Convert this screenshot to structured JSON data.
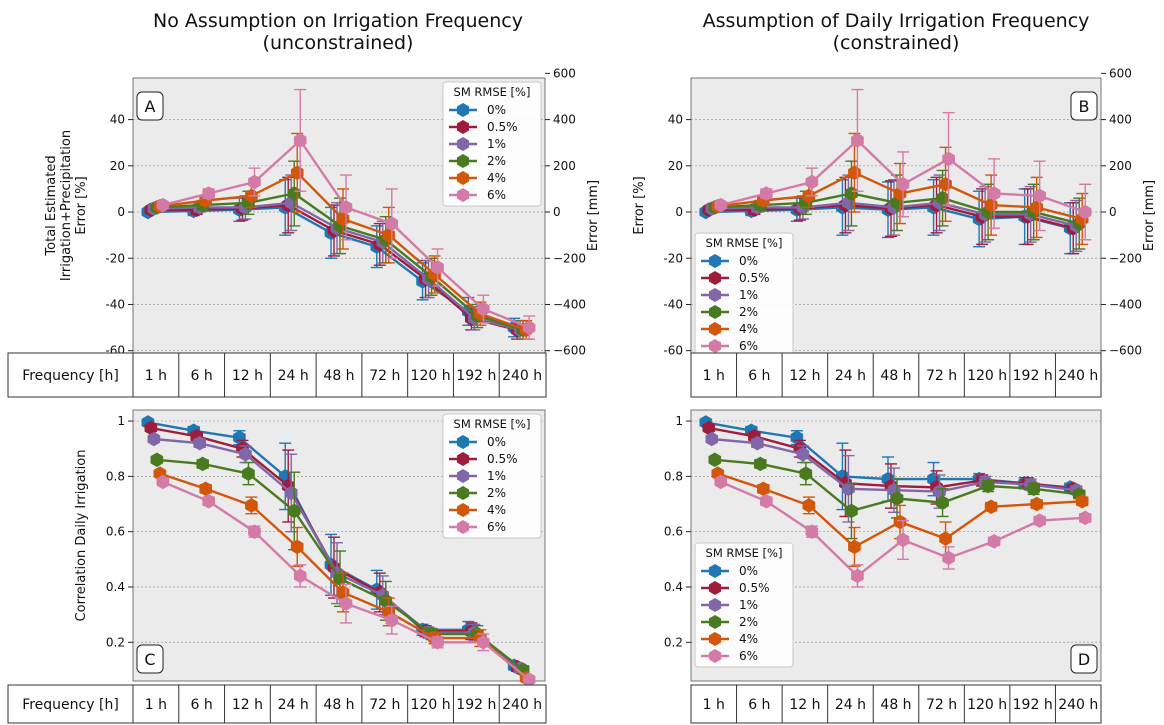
{
  "titles": {
    "left": [
      "No Assumption on Irrigation Frequency",
      "(unconstrained)"
    ],
    "right": [
      "Assumption of Daily Irrigation Frequency",
      "(constrained)"
    ]
  },
  "frequency_label": "Frequency [h]",
  "colors": {
    "0%": "#1f77b4",
    "0.5%": "#a01c3c",
    "1%": "#8067a8",
    "2%": "#4a7a1f",
    "4%": "#d2570a",
    "6%": "#d47aa7"
  },
  "chart_data": [
    {
      "id": "A",
      "type": "line",
      "panel_label": "A",
      "ylabel": [
        "Total Estimated",
        "Irrigation+Precipitation",
        "Error [%]"
      ],
      "y2label": "Error [mm]",
      "ylim": [
        -61,
        58
      ],
      "yticks": [
        -60,
        -40,
        -20,
        0,
        20,
        40
      ],
      "y2ticks": [
        -600,
        -400,
        -200,
        0,
        200,
        400,
        600
      ],
      "y2_per_y": 10,
      "grid": true,
      "legend_title": "SM RMSE [%]",
      "legend_position": "top-right",
      "categories": [
        "1 h",
        "6 h",
        "12 h",
        "24 h",
        "48 h",
        "72 h",
        "120 h",
        "192 h",
        "240 h"
      ],
      "series": [
        {
          "name": "0%",
          "values": [
            0,
            0.5,
            1,
            2,
            -9,
            -15,
            -30,
            -43,
            -50
          ],
          "err": [
            1,
            2,
            5,
            12,
            11,
            9,
            8,
            6,
            4
          ]
        },
        {
          "name": "0.5%",
          "values": [
            1,
            1,
            1.5,
            3,
            -8,
            -14,
            -29,
            -46,
            -51
          ],
          "err": [
            1,
            2,
            5,
            12,
            11,
            9,
            8,
            5,
            4
          ]
        },
        {
          "name": "1%",
          "values": [
            1.5,
            2,
            2,
            4,
            -7,
            -13,
            -29,
            -46,
            -51
          ],
          "err": [
            1,
            2,
            5,
            12,
            11,
            9,
            8,
            5,
            4
          ]
        },
        {
          "name": "2%",
          "values": [
            2,
            3,
            4,
            8,
            -6,
            -12,
            -28,
            -45,
            -51
          ],
          "err": [
            1,
            2,
            5,
            14,
            12,
            10,
            8,
            5,
            4
          ]
        },
        {
          "name": "4%",
          "values": [
            2.5,
            5,
            7,
            17,
            -3,
            -10,
            -27,
            -44,
            -51
          ],
          "err": [
            1,
            2,
            5,
            17,
            13,
            12,
            8,
            5,
            4
          ]
        },
        {
          "name": "6%",
          "values": [
            3,
            8,
            13,
            31,
            2,
            -5,
            -24,
            -42,
            -50
          ],
          "err": [
            1,
            2,
            6,
            22,
            14,
            15,
            8,
            6,
            5
          ]
        }
      ]
    },
    {
      "id": "B",
      "type": "line",
      "panel_label": "B",
      "ylabel": [
        "Error [%]"
      ],
      "y2label": "Error [mm]",
      "ylim": [
        -61,
        58
      ],
      "yticks": [
        -60,
        -40,
        -20,
        0,
        20,
        40
      ],
      "y2ticks": [
        -600,
        -400,
        -200,
        0,
        200,
        400,
        600
      ],
      "y2_per_y": 10,
      "grid": true,
      "legend_title": "SM RMSE [%]",
      "legend_position": "center-left",
      "categories": [
        "1 h",
        "6 h",
        "12 h",
        "24 h",
        "48 h",
        "72 h",
        "120 h",
        "192 h",
        "240 h"
      ],
      "series": [
        {
          "name": "0%",
          "values": [
            0,
            0.5,
            1,
            2,
            1,
            2,
            -3,
            -2,
            -7
          ],
          "err": [
            1,
            2,
            5,
            12,
            12,
            12,
            12,
            12,
            11
          ]
        },
        {
          "name": "0.5%",
          "values": [
            1,
            1,
            1.5,
            3,
            1.5,
            3,
            -2,
            -2,
            -7
          ],
          "err": [
            1,
            2,
            5,
            12,
            12,
            12,
            12,
            12,
            11
          ]
        },
        {
          "name": "1%",
          "values": [
            1.5,
            2,
            2,
            4,
            2,
            4,
            -1,
            -1,
            -6
          ],
          "err": [
            1,
            2,
            5,
            12,
            12,
            12,
            12,
            12,
            11
          ]
        },
        {
          "name": "2%",
          "values": [
            2,
            3,
            4,
            8,
            4,
            6,
            0,
            0,
            -5
          ],
          "err": [
            1,
            2,
            5,
            14,
            12,
            12,
            12,
            12,
            11
          ]
        },
        {
          "name": "4%",
          "values": [
            2.5,
            5,
            7,
            17,
            8,
            12,
            3,
            2,
            -3
          ],
          "err": [
            1,
            2,
            5,
            17,
            13,
            16,
            13,
            13,
            11
          ]
        },
        {
          "name": "6%",
          "values": [
            3,
            8,
            13,
            31,
            12,
            23,
            8,
            7,
            0
          ],
          "err": [
            1,
            2,
            6,
            22,
            14,
            20,
            15,
            15,
            12
          ]
        }
      ]
    },
    {
      "id": "C",
      "type": "line",
      "panel_label": "C",
      "ylabel": [
        "Correlation Daily Irrigation"
      ],
      "ylim": [
        0.06,
        1.04
      ],
      "yticks": [
        0.2,
        0.4,
        0.6,
        0.8,
        1.0
      ],
      "grid": true,
      "legend_title": "SM RMSE [%]",
      "legend_position": "top-right",
      "categories": [
        "1 h",
        "6 h",
        "12 h",
        "24 h",
        "48 h",
        "72 h",
        "120 h",
        "192 h",
        "240 h"
      ],
      "series": [
        {
          "name": "0%",
          "values": [
            0.995,
            0.965,
            0.94,
            0.8,
            0.48,
            0.39,
            0.245,
            0.245,
            0.115
          ],
          "err": [
            0.005,
            0.015,
            0.025,
            0.12,
            0.11,
            0.07,
            0.02,
            0.03,
            0.015
          ]
        },
        {
          "name": "0.5%",
          "values": [
            0.975,
            0.945,
            0.9,
            0.765,
            0.47,
            0.38,
            0.24,
            0.24,
            0.11
          ],
          "err": [
            0.005,
            0.015,
            0.03,
            0.13,
            0.11,
            0.07,
            0.02,
            0.03,
            0.015
          ]
        },
        {
          "name": "1%",
          "values": [
            0.935,
            0.92,
            0.88,
            0.74,
            0.45,
            0.37,
            0.235,
            0.235,
            0.105
          ],
          "err": [
            0.01,
            0.015,
            0.03,
            0.14,
            0.11,
            0.07,
            0.02,
            0.03,
            0.015
          ]
        },
        {
          "name": "2%",
          "values": [
            0.86,
            0.845,
            0.81,
            0.675,
            0.43,
            0.35,
            0.23,
            0.23,
            0.1
          ],
          "err": [
            0.01,
            0.015,
            0.04,
            0.14,
            0.1,
            0.07,
            0.02,
            0.03,
            0.015
          ]
        },
        {
          "name": "4%",
          "values": [
            0.81,
            0.755,
            0.695,
            0.545,
            0.38,
            0.31,
            0.215,
            0.215,
            0.07
          ],
          "err": [
            0.01,
            0.015,
            0.03,
            0.07,
            0.07,
            0.05,
            0.02,
            0.03,
            0.01
          ]
        },
        {
          "name": "6%",
          "values": [
            0.78,
            0.71,
            0.6,
            0.44,
            0.34,
            0.28,
            0.2,
            0.2,
            0.065
          ],
          "err": [
            0.01,
            0.015,
            0.02,
            0.04,
            0.07,
            0.05,
            0.02,
            0.03,
            0.01
          ]
        }
      ]
    },
    {
      "id": "D",
      "type": "line",
      "panel_label": "D",
      "ylabel": [],
      "ylim": [
        0.06,
        1.04
      ],
      "yticks": [
        0.2,
        0.4,
        0.6,
        0.8,
        1.0
      ],
      "grid": true,
      "legend_title": "SM RMSE [%]",
      "legend_position": "bottom-left",
      "categories": [
        "1 h",
        "6 h",
        "12 h",
        "24 h",
        "48 h",
        "72 h",
        "120 h",
        "192 h",
        "240 h"
      ],
      "series": [
        {
          "name": "0%",
          "values": [
            0.995,
            0.965,
            0.94,
            0.8,
            0.79,
            0.79,
            0.79,
            0.775,
            0.76
          ],
          "err": [
            0.005,
            0.015,
            0.025,
            0.12,
            0.08,
            0.06,
            0.02,
            0.02,
            0.015
          ]
        },
        {
          "name": "0.5%",
          "values": [
            0.975,
            0.945,
            0.9,
            0.775,
            0.765,
            0.76,
            0.785,
            0.775,
            0.755
          ],
          "err": [
            0.005,
            0.015,
            0.03,
            0.12,
            0.08,
            0.06,
            0.02,
            0.02,
            0.015
          ]
        },
        {
          "name": "1%",
          "values": [
            0.935,
            0.92,
            0.88,
            0.755,
            0.75,
            0.745,
            0.78,
            0.77,
            0.75
          ],
          "err": [
            0.01,
            0.015,
            0.03,
            0.12,
            0.08,
            0.06,
            0.02,
            0.02,
            0.015
          ]
        },
        {
          "name": "2%",
          "values": [
            0.86,
            0.845,
            0.81,
            0.675,
            0.72,
            0.705,
            0.765,
            0.755,
            0.735
          ],
          "err": [
            0.01,
            0.015,
            0.04,
            0.1,
            0.07,
            0.05,
            0.02,
            0.02,
            0.015
          ]
        },
        {
          "name": "4%",
          "values": [
            0.81,
            0.755,
            0.695,
            0.545,
            0.635,
            0.575,
            0.69,
            0.7,
            0.71
          ],
          "err": [
            0.01,
            0.015,
            0.03,
            0.07,
            0.06,
            0.06,
            0.015,
            0.015,
            0.015
          ]
        },
        {
          "name": "6%",
          "values": [
            0.78,
            0.71,
            0.6,
            0.44,
            0.57,
            0.505,
            0.565,
            0.64,
            0.65
          ],
          "err": [
            0.01,
            0.015,
            0.02,
            0.04,
            0.07,
            0.04,
            0.015,
            0.015,
            0.015
          ]
        }
      ]
    }
  ]
}
